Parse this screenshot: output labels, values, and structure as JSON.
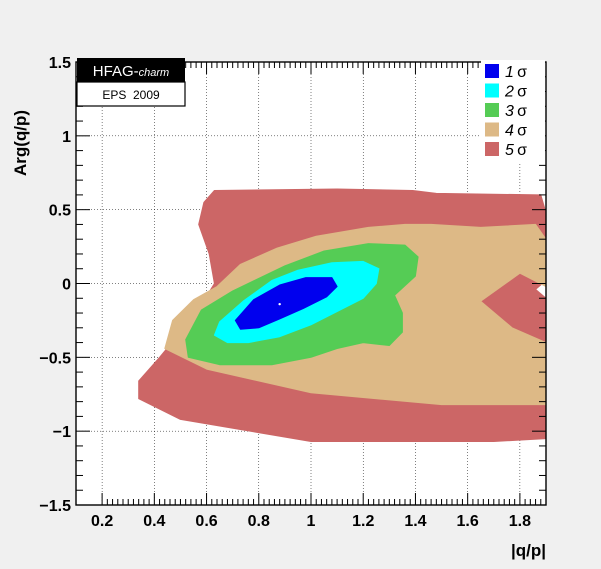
{
  "chart_data": {
    "type": "heatmap",
    "title": "",
    "xlabel": "|q/p|",
    "ylabel": "Arg(q/p)",
    "xlim": [
      0.1,
      1.9
    ],
    "ylim": [
      -1.5,
      1.5
    ],
    "x_ticks": [
      "0.2",
      "0.4",
      "0.6",
      "0.8",
      "1",
      "1.2",
      "1.4",
      "1.6",
      "1.8"
    ],
    "y_ticks": [
      "-1.5",
      "-1",
      "-0.5",
      "0",
      "0.5",
      "1",
      "1.5"
    ],
    "grid": true,
    "legend_position": "top-right",
    "badge": {
      "title": "HFAG-",
      "title_italic": "charm",
      "subtitle": "EPS  2009"
    },
    "best_fit": {
      "x": 0.88,
      "y": -0.14
    },
    "series": [
      {
        "name": "5 σ",
        "sigma_text": "σ",
        "num": "5",
        "color": "#cc6666",
        "region": [
          [
            0.59,
            0.55
          ],
          [
            0.63,
            0.63
          ],
          [
            1.1,
            0.64
          ],
          [
            1.39,
            0.63
          ],
          [
            1.48,
            0.61
          ],
          [
            1.88,
            0.6
          ],
          [
            1.9,
            0.48
          ],
          [
            1.9,
            0.02
          ],
          [
            1.86,
            -0.04
          ],
          [
            1.9,
            -0.1
          ],
          [
            1.9,
            -1.05
          ],
          [
            1.7,
            -1.07
          ],
          [
            1.0,
            -1.07
          ],
          [
            0.5,
            -0.92
          ],
          [
            0.34,
            -0.78
          ],
          [
            0.34,
            -0.66
          ],
          [
            0.42,
            -0.5
          ],
          [
            0.56,
            -0.2
          ],
          [
            0.63,
            0.0
          ],
          [
            0.61,
            0.2
          ],
          [
            0.57,
            0.4
          ]
        ]
      },
      {
        "name": "4 σ",
        "sigma_text": "σ",
        "num": "4",
        "color": "#ddb986",
        "region": [
          [
            0.64,
            -0.02
          ],
          [
            0.73,
            0.13
          ],
          [
            0.87,
            0.24
          ],
          [
            1.02,
            0.32
          ],
          [
            1.22,
            0.38
          ],
          [
            1.36,
            0.4
          ],
          [
            1.46,
            0.4
          ],
          [
            1.65,
            0.38
          ],
          [
            1.86,
            0.4
          ],
          [
            1.9,
            0.3
          ],
          [
            1.9,
            -0.02
          ],
          [
            1.8,
            0.07
          ],
          [
            1.65,
            -0.12
          ],
          [
            1.77,
            -0.3
          ],
          [
            1.9,
            -0.4
          ],
          [
            1.9,
            -0.82
          ],
          [
            1.5,
            -0.82
          ],
          [
            1.0,
            -0.74
          ],
          [
            0.6,
            -0.58
          ],
          [
            0.44,
            -0.44
          ],
          [
            0.47,
            -0.25
          ],
          [
            0.55,
            -0.11
          ]
        ]
      },
      {
        "name": "3 σ",
        "sigma_text": "σ",
        "num": "3",
        "color": "#55cc55",
        "region": [
          [
            0.58,
            -0.18
          ],
          [
            0.7,
            -0.05
          ],
          [
            0.9,
            0.12
          ],
          [
            1.05,
            0.22
          ],
          [
            1.22,
            0.27
          ],
          [
            1.36,
            0.26
          ],
          [
            1.41,
            0.18
          ],
          [
            1.4,
            0.05
          ],
          [
            1.32,
            -0.08
          ],
          [
            1.35,
            -0.2
          ],
          [
            1.35,
            -0.33
          ],
          [
            1.3,
            -0.42
          ],
          [
            1.2,
            -0.4
          ],
          [
            1.1,
            -0.44
          ],
          [
            1.0,
            -0.5
          ],
          [
            0.85,
            -0.55
          ],
          [
            0.65,
            -0.55
          ],
          [
            0.53,
            -0.5
          ],
          [
            0.52,
            -0.38
          ]
        ]
      },
      {
        "name": "2 σ",
        "sigma_text": "σ",
        "num": "2",
        "color": "#00ffff",
        "region": [
          [
            0.65,
            -0.26
          ],
          [
            0.74,
            -0.12
          ],
          [
            0.85,
            0.02
          ],
          [
            0.95,
            0.09
          ],
          [
            1.08,
            0.14
          ],
          [
            1.2,
            0.15
          ],
          [
            1.26,
            0.1
          ],
          [
            1.25,
            0.0
          ],
          [
            1.2,
            -0.1
          ],
          [
            1.1,
            -0.19
          ],
          [
            1.0,
            -0.28
          ],
          [
            0.88,
            -0.36
          ],
          [
            0.76,
            -0.4
          ],
          [
            0.68,
            -0.4
          ],
          [
            0.63,
            -0.35
          ]
        ]
      },
      {
        "name": "1 σ",
        "sigma_text": "σ",
        "num": "1",
        "color": "#0000ee",
        "region": [
          [
            0.71,
            -0.25
          ],
          [
            0.78,
            -0.11
          ],
          [
            0.88,
            -0.01
          ],
          [
            0.98,
            0.04
          ],
          [
            1.08,
            0.04
          ],
          [
            1.1,
            -0.02
          ],
          [
            1.06,
            -0.09
          ],
          [
            0.97,
            -0.17
          ],
          [
            0.88,
            -0.24
          ],
          [
            0.8,
            -0.3
          ],
          [
            0.73,
            -0.31
          ]
        ]
      }
    ]
  }
}
